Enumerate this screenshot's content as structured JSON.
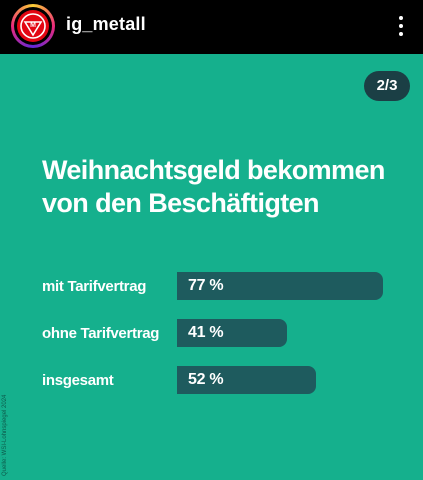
{
  "header": {
    "username": "ig_metall",
    "avatar_icon": "ig-metall-logo-icon",
    "menu_icon": "more-vertical-icon"
  },
  "slide": {
    "counter": "2/3",
    "title": "Weihnachtsgeld bekommen von den Beschäftigten",
    "source": "Quelle: WSI-Lohnspiegel 2024"
  },
  "colors": {
    "background": "#15b08d",
    "bar": "#1e5b5e",
    "counter_badge": "#1b3f45",
    "logo_red": "#e30613"
  },
  "chart_data": {
    "type": "bar",
    "orientation": "horizontal",
    "title": "Weihnachtsgeld bekommen von den Beschäftigten",
    "categories": [
      "mit Tarifvertrag",
      "ohne Tarifvertrag",
      "insgesamt"
    ],
    "values": [
      77,
      41,
      52
    ],
    "value_labels": [
      "77 %",
      "41 %",
      "52 %"
    ],
    "xlim": [
      0,
      77
    ]
  }
}
